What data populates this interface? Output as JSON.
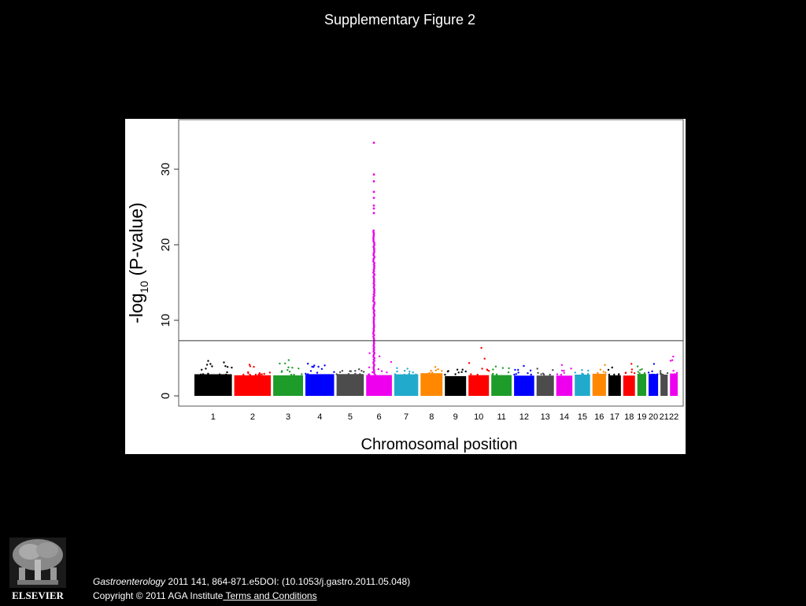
{
  "slide": {
    "title": "Supplementary Figure 2"
  },
  "chart_data": {
    "type": "scatter",
    "subtype": "manhattan",
    "xlabel": "Chromosomal position",
    "ylabel_main": "-log",
    "ylabel_sub": "10",
    "ylabel_tail": " (P-value)",
    "ylim": [
      0,
      36
    ],
    "yticks": [
      "0",
      "10",
      "20",
      "30"
    ],
    "significance_line": 7.3,
    "grid": false,
    "chromosomes": [
      {
        "label": "1",
        "color": "#000000",
        "max": 5.0
      },
      {
        "label": "2",
        "color": "#ff0000",
        "max": 4.3
      },
      {
        "label": "3",
        "color": "#1e9c2a",
        "max": 5.2
      },
      {
        "label": "4",
        "color": "#0000ff",
        "max": 4.5
      },
      {
        "label": "5",
        "color": "#4c4c4c",
        "max": 4.0
      },
      {
        "label": "6",
        "color": "#ee00ee",
        "max": 33.5
      },
      {
        "label": "7",
        "color": "#22aacc",
        "max": 4.2
      },
      {
        "label": "8",
        "color": "#ff8800",
        "max": 4.0
      },
      {
        "label": "9",
        "color": "#000000",
        "max": 3.5
      },
      {
        "label": "10",
        "color": "#ff0000",
        "max": 6.5
      },
      {
        "label": "11",
        "color": "#1e9c2a",
        "max": 5.0
      },
      {
        "label": "12",
        "color": "#0000ff",
        "max": 4.2
      },
      {
        "label": "13",
        "color": "#4c4c4c",
        "max": 3.8
      },
      {
        "label": "14",
        "color": "#ee00ee",
        "max": 4.2
      },
      {
        "label": "15",
        "color": "#22aacc",
        "max": 3.8
      },
      {
        "label": "16",
        "color": "#ff8800",
        "max": 4.2
      },
      {
        "label": "17",
        "color": "#000000",
        "max": 4.0
      },
      {
        "label": "18",
        "color": "#ff0000",
        "max": 4.5
      },
      {
        "label": "19",
        "color": "#1e9c2a",
        "max": 4.0
      },
      {
        "label": "20",
        "color": "#0000ff",
        "max": 5.2
      },
      {
        "label": "21",
        "color": "#4c4c4c",
        "max": 3.5
      },
      {
        "label": "22",
        "color": "#ee00ee",
        "max": 6.0
      }
    ]
  },
  "footer": {
    "journal": "Gastroenterology",
    "citation": " 2011 141, 864-871.e5DOI: (10.1053/j.gastro.2011.05.048)",
    "copyright": "Copyright © 2011 AGA Institute",
    "terms_link": " Terms and Conditions"
  },
  "logo": {
    "icon": "elsevier-tree-icon",
    "text": "ELSEVIER"
  }
}
